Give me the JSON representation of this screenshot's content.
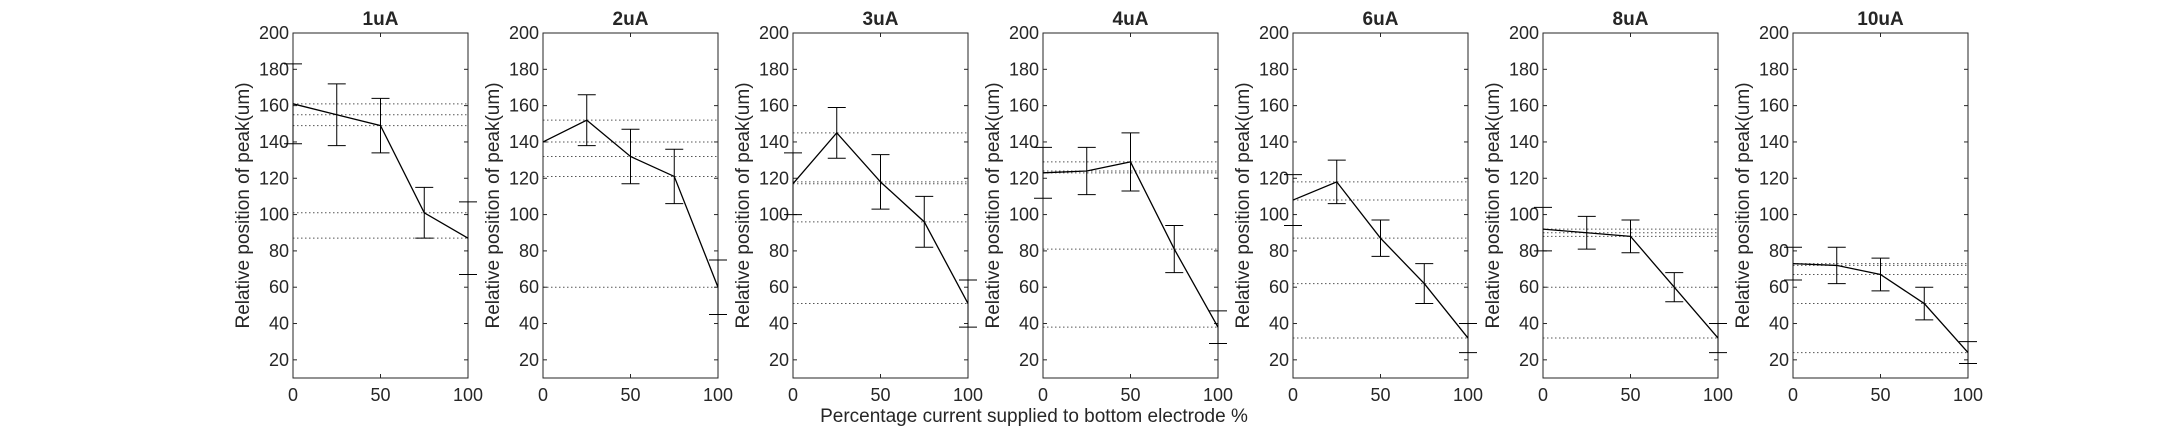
{
  "figure": {
    "xlabel": "Percentage current supplied to bottom electrode %"
  },
  "chart_data": [
    {
      "type": "line",
      "title": "1uA",
      "ylabel": "Relative position of peak(um)",
      "xlim": [
        0,
        100
      ],
      "ylim": [
        10,
        200
      ],
      "xticks": [
        0,
        50,
        100
      ],
      "yticks": [
        20,
        40,
        60,
        80,
        100,
        120,
        140,
        160,
        180,
        200
      ],
      "x": [
        0,
        25,
        50,
        75,
        100
      ],
      "values": [
        161,
        155,
        149,
        101,
        87
      ],
      "error": [
        22,
        17,
        15,
        14,
        20
      ],
      "reference_lines": [
        161,
        155,
        149,
        101,
        87
      ]
    },
    {
      "type": "line",
      "title": "2uA",
      "ylabel": "Relative position of peak(um)",
      "xlim": [
        0,
        100
      ],
      "ylim": [
        10,
        200
      ],
      "xticks": [
        0,
        50,
        100
      ],
      "yticks": [
        20,
        40,
        60,
        80,
        100,
        120,
        140,
        160,
        180,
        200
      ],
      "x": [
        0,
        25,
        50,
        75,
        100
      ],
      "values": [
        140,
        152,
        132,
        121,
        60
      ],
      "error": [
        0,
        14,
        15,
        15,
        15
      ],
      "reference_lines": [
        152,
        140,
        132,
        121,
        60
      ]
    },
    {
      "type": "line",
      "title": "3uA",
      "ylabel": "Relative position of peak(um)",
      "xlim": [
        0,
        100
      ],
      "ylim": [
        10,
        200
      ],
      "xticks": [
        0,
        50,
        100
      ],
      "yticks": [
        20,
        40,
        60,
        80,
        100,
        120,
        140,
        160,
        180,
        200
      ],
      "x": [
        0,
        25,
        50,
        75,
        100
      ],
      "values": [
        117,
        145,
        118,
        96,
        51
      ],
      "error": [
        17,
        14,
        15,
        14,
        13
      ],
      "reference_lines": [
        145,
        118,
        117,
        96,
        51
      ]
    },
    {
      "type": "line",
      "title": "4uA",
      "ylabel": "Relative position of peak(um)",
      "xlim": [
        0,
        100
      ],
      "ylim": [
        10,
        200
      ],
      "xticks": [
        0,
        50,
        100
      ],
      "yticks": [
        20,
        40,
        60,
        80,
        100,
        120,
        140,
        160,
        180,
        200
      ],
      "x": [
        0,
        25,
        50,
        75,
        100
      ],
      "values": [
        123,
        124,
        129,
        81,
        38
      ],
      "error": [
        14,
        13,
        16,
        13,
        9
      ],
      "reference_lines": [
        129,
        124,
        123,
        81,
        38
      ]
    },
    {
      "type": "line",
      "title": "6uA",
      "ylabel": "Relative position of peak(um)",
      "xlim": [
        0,
        100
      ],
      "ylim": [
        10,
        200
      ],
      "xticks": [
        0,
        50,
        100
      ],
      "yticks": [
        20,
        40,
        60,
        80,
        100,
        120,
        140,
        160,
        180,
        200
      ],
      "x": [
        0,
        25,
        50,
        75,
        100
      ],
      "values": [
        108,
        118,
        87,
        62,
        32
      ],
      "error": [
        14,
        12,
        10,
        11,
        8
      ],
      "reference_lines": [
        118,
        108,
        87,
        62,
        32
      ]
    },
    {
      "type": "line",
      "title": "8uA",
      "ylabel": "Relative position of peak(um)",
      "xlim": [
        0,
        100
      ],
      "ylim": [
        10,
        200
      ],
      "xticks": [
        0,
        50,
        100
      ],
      "yticks": [
        20,
        40,
        60,
        80,
        100,
        120,
        140,
        160,
        180,
        200
      ],
      "x": [
        0,
        25,
        50,
        75,
        100
      ],
      "values": [
        92,
        90,
        88,
        60,
        32
      ],
      "error": [
        12,
        9,
        9,
        8,
        8
      ],
      "reference_lines": [
        92,
        90,
        88,
        60,
        32
      ]
    },
    {
      "type": "line",
      "title": "10uA",
      "ylabel": "Relative position of peak(um)",
      "xlim": [
        0,
        100
      ],
      "ylim": [
        10,
        200
      ],
      "xticks": [
        0,
        50,
        100
      ],
      "yticks": [
        20,
        40,
        60,
        80,
        100,
        120,
        140,
        160,
        180,
        200
      ],
      "x": [
        0,
        25,
        50,
        75,
        100
      ],
      "values": [
        73,
        72,
        67,
        51,
        24
      ],
      "error": [
        9,
        10,
        9,
        9,
        6
      ],
      "reference_lines": [
        73,
        72,
        67,
        51,
        24
      ]
    }
  ]
}
